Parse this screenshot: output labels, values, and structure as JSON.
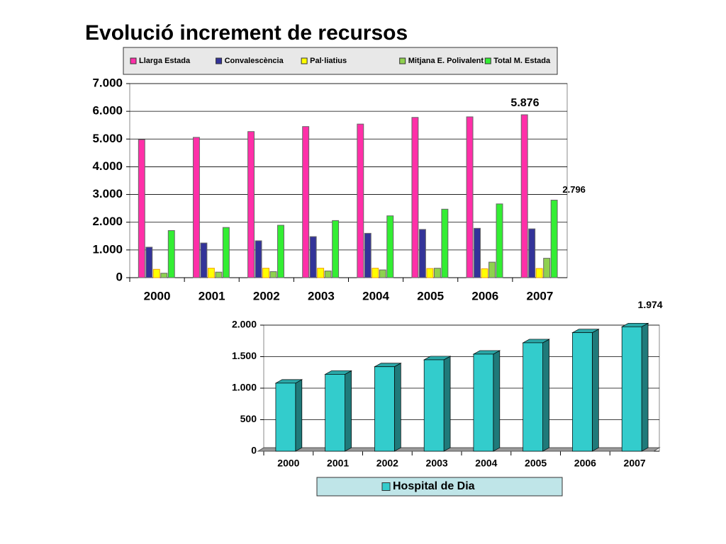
{
  "chart_data": [
    {
      "type": "bar",
      "title": "Evolució increment de recursos",
      "categories": [
        "2000",
        "2001",
        "2002",
        "2003",
        "2004",
        "2005",
        "2006",
        "2007"
      ],
      "series": [
        {
          "name": "Llarga Estada",
          "color": "#ff2fa8",
          "values": [
            4980,
            5060,
            5270,
            5450,
            5540,
            5780,
            5800,
            5876
          ],
          "value_labels": [
            null,
            null,
            null,
            null,
            null,
            null,
            null,
            "5.876"
          ]
        },
        {
          "name": "Convalescència",
          "color": "#333399",
          "values": [
            1100,
            1250,
            1330,
            1480,
            1600,
            1740,
            1780,
            1760
          ]
        },
        {
          "name": "Pal·liatius",
          "color": "#ffff00",
          "values": [
            300,
            340,
            340,
            340,
            340,
            330,
            320,
            330
          ]
        },
        {
          "name": "Mitjana E. Polivalent",
          "color": "#8fd14f",
          "values": [
            160,
            200,
            220,
            240,
            280,
            340,
            560,
            700
          ]
        },
        {
          "name": "Total M. Estada",
          "color": "#33ee33",
          "values": [
            1700,
            1810,
            1890,
            2060,
            2230,
            2470,
            2660,
            2796
          ],
          "value_labels": [
            null,
            null,
            null,
            null,
            null,
            null,
            null,
            "2.796"
          ]
        }
      ],
      "ylim": [
        0,
        7000
      ],
      "yticks": [
        0,
        {
          "value": 1000,
          "label": "1.000"
        },
        {
          "value": 2000,
          "label": "2.000"
        },
        {
          "value": 3000,
          "label": "3.000"
        },
        {
          "value": 4000,
          "label": "4.000"
        },
        {
          "value": 5000,
          "label": "5.000"
        },
        {
          "value": 6000,
          "label": "6.000"
        },
        {
          "value": 7000,
          "label": "7.000"
        }
      ],
      "grid": true,
      "legend": "top"
    },
    {
      "type": "bar3d",
      "categories": [
        "2000",
        "2001",
        "2002",
        "2003",
        "2004",
        "2005",
        "2006",
        "2007"
      ],
      "series": [
        {
          "name": "Hospital de Dia",
          "color": "#33cccc",
          "values": [
            1080,
            1220,
            1340,
            1450,
            1540,
            1720,
            1880,
            1974
          ],
          "value_labels": [
            null,
            null,
            null,
            null,
            null,
            null,
            null,
            "1.974"
          ]
        }
      ],
      "ylim": [
        0,
        2000
      ],
      "yticks": [
        0,
        500,
        {
          "value": 1000,
          "label": "1.000"
        },
        {
          "value": 1500,
          "label": "1.500"
        },
        {
          "value": 2000,
          "label": "2.000"
        }
      ],
      "grid": true,
      "legend": "bottom"
    }
  ]
}
